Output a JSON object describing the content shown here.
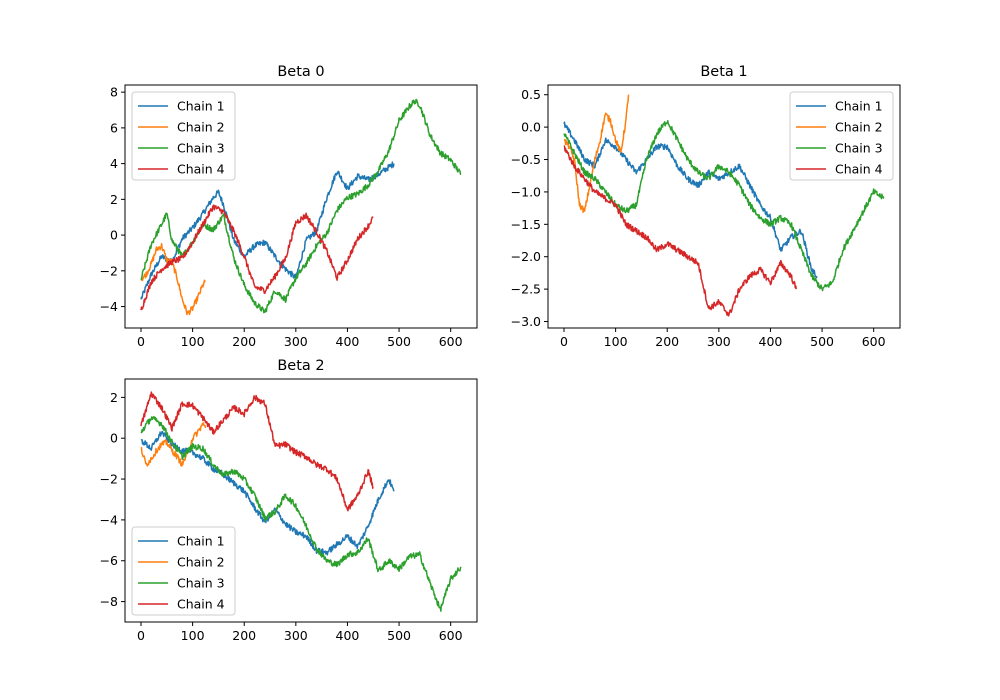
{
  "chart_data": [
    {
      "type": "line",
      "title": "Beta 0",
      "xlim": [
        -31,
        651
      ],
      "ylim": [
        -5.2,
        8.4
      ],
      "xticks": [
        0,
        100,
        200,
        300,
        400,
        500,
        600
      ],
      "yticks": [
        -4,
        -2,
        0,
        2,
        4,
        6,
        8
      ],
      "legend": "upper-left",
      "series": [
        {
          "name": "Chain 1",
          "color": "#1f77b4",
          "n": 490,
          "x": [
            0,
            20,
            40,
            60,
            80,
            100,
            120,
            140,
            150,
            160,
            180,
            200,
            220,
            240,
            260,
            280,
            300,
            320,
            340,
            360,
            380,
            400,
            420,
            440,
            460,
            490
          ],
          "y": [
            -3.6,
            -2.2,
            -1.2,
            -1.5,
            -0.2,
            0.4,
            1.2,
            2.1,
            2.4,
            1.7,
            -0.3,
            -1.2,
            -0.6,
            -0.4,
            -1.2,
            -1.9,
            -2.4,
            -0.3,
            0.2,
            2.1,
            3.6,
            2.6,
            3.3,
            3.1,
            3.4,
            4.0
          ]
        },
        {
          "name": "Chain 2",
          "color": "#ff7f0e",
          "n": 125,
          "x": [
            0,
            10,
            20,
            30,
            40,
            50,
            60,
            70,
            80,
            90,
            100,
            110,
            120,
            125
          ],
          "y": [
            -2.5,
            -2.2,
            -1.6,
            -0.8,
            -0.6,
            -1.4,
            -1.5,
            -2.4,
            -3.6,
            -4.4,
            -4.1,
            -3.5,
            -2.8,
            -2.6
          ]
        },
        {
          "name": "Chain 3",
          "color": "#2ca02c",
          "n": 620,
          "x": [
            0,
            20,
            40,
            50,
            60,
            80,
            100,
            120,
            140,
            160,
            180,
            200,
            220,
            240,
            260,
            280,
            300,
            320,
            340,
            360,
            380,
            400,
            420,
            440,
            460,
            480,
            500,
            520,
            530,
            540,
            560,
            580,
            600,
            620
          ],
          "y": [
            -2.5,
            -0.5,
            0.6,
            1.2,
            -0.3,
            -1.2,
            -0.4,
            0.6,
            0.3,
            1.1,
            -1.3,
            -2.8,
            -3.8,
            -4.3,
            -3.1,
            -3.6,
            -2.4,
            -1.6,
            -0.6,
            0.1,
            1.4,
            2.1,
            2.3,
            2.8,
            3.6,
            4.7,
            6.4,
            7.2,
            7.5,
            7.3,
            5.6,
            4.6,
            4.2,
            3.4
          ]
        },
        {
          "name": "Chain 4",
          "color": "#d62728",
          "n": 450,
          "x": [
            0,
            20,
            40,
            60,
            80,
            100,
            120,
            140,
            160,
            180,
            200,
            220,
            240,
            260,
            280,
            300,
            320,
            340,
            360,
            380,
            400,
            420,
            440,
            450
          ],
          "y": [
            -4.2,
            -2.6,
            -1.9,
            -1.5,
            -1.3,
            -0.4,
            0.6,
            1.6,
            1.3,
            0.2,
            -1.2,
            -2.9,
            -3.1,
            -2.3,
            -1.3,
            0.7,
            1.1,
            0.2,
            -0.9,
            -2.4,
            -1.4,
            -0.2,
            0.5,
            1.0
          ]
        }
      ]
    },
    {
      "type": "line",
      "title": "Beta 1",
      "xlim": [
        -31,
        651
      ],
      "ylim": [
        -3.1,
        0.65
      ],
      "xticks": [
        0,
        100,
        200,
        300,
        400,
        500,
        600
      ],
      "yticks": [
        -3.0,
        -2.5,
        -2.0,
        -1.5,
        -1.0,
        -0.5,
        0.0,
        0.5
      ],
      "legend": "upper-right",
      "series": [
        {
          "name": "Chain 1",
          "color": "#1f77b4",
          "n": 490,
          "x": [
            0,
            20,
            40,
            60,
            80,
            100,
            120,
            140,
            160,
            180,
            200,
            220,
            240,
            260,
            280,
            300,
            320,
            340,
            360,
            380,
            400,
            420,
            440,
            460,
            480,
            490
          ],
          "y": [
            0.05,
            -0.2,
            -0.5,
            -0.6,
            -0.2,
            -0.3,
            -0.5,
            -0.7,
            -0.5,
            -0.3,
            -0.3,
            -0.6,
            -0.8,
            -0.9,
            -0.7,
            -0.8,
            -0.7,
            -0.6,
            -0.9,
            -1.2,
            -1.4,
            -1.9,
            -1.7,
            -1.6,
            -2.2,
            -2.3
          ]
        },
        {
          "name": "Chain 2",
          "color": "#ff7f0e",
          "n": 125,
          "x": [
            0,
            10,
            20,
            30,
            40,
            50,
            60,
            70,
            80,
            90,
            100,
            110,
            120,
            125
          ],
          "y": [
            -0.2,
            -0.3,
            -0.5,
            -1.2,
            -1.3,
            -0.9,
            -0.5,
            -0.2,
            0.2,
            0.1,
            -0.2,
            -0.4,
            0.1,
            0.5
          ]
        },
        {
          "name": "Chain 3",
          "color": "#2ca02c",
          "n": 620,
          "x": [
            0,
            20,
            40,
            60,
            80,
            100,
            120,
            140,
            160,
            180,
            200,
            220,
            240,
            260,
            280,
            300,
            320,
            340,
            360,
            380,
            400,
            420,
            440,
            460,
            480,
            500,
            520,
            540,
            560,
            580,
            600,
            620
          ],
          "y": [
            -0.1,
            -0.4,
            -0.7,
            -0.8,
            -1.0,
            -1.2,
            -1.3,
            -1.2,
            -0.5,
            -0.1,
            0.1,
            -0.2,
            -0.5,
            -0.7,
            -0.8,
            -0.6,
            -0.7,
            -0.9,
            -1.2,
            -1.4,
            -1.5,
            -1.4,
            -1.5,
            -1.9,
            -2.3,
            -2.5,
            -2.4,
            -1.9,
            -1.6,
            -1.3,
            -1.0,
            -1.1
          ]
        },
        {
          "name": "Chain 4",
          "color": "#d62728",
          "n": 450,
          "x": [
            0,
            20,
            40,
            60,
            80,
            100,
            120,
            140,
            160,
            180,
            200,
            220,
            240,
            260,
            280,
            300,
            320,
            340,
            360,
            380,
            400,
            420,
            440,
            450
          ],
          "y": [
            -0.3,
            -0.6,
            -0.8,
            -1.0,
            -1.1,
            -1.2,
            -1.5,
            -1.6,
            -1.7,
            -1.9,
            -1.8,
            -1.9,
            -2.0,
            -2.1,
            -2.8,
            -2.7,
            -2.9,
            -2.5,
            -2.3,
            -2.2,
            -2.4,
            -2.1,
            -2.3,
            -2.5
          ]
        }
      ]
    },
    {
      "type": "line",
      "title": "Beta 2",
      "xlim": [
        -31,
        651
      ],
      "ylim": [
        -9.0,
        2.9
      ],
      "xticks": [
        0,
        100,
        200,
        300,
        400,
        500,
        600
      ],
      "yticks": [
        -8,
        -6,
        -4,
        -2,
        0,
        2
      ],
      "legend": "lower-left",
      "series": [
        {
          "name": "Chain 1",
          "color": "#1f77b4",
          "n": 490,
          "x": [
            0,
            20,
            40,
            60,
            80,
            100,
            120,
            140,
            160,
            180,
            200,
            220,
            240,
            260,
            280,
            300,
            320,
            340,
            360,
            380,
            400,
            420,
            440,
            460,
            480,
            490
          ],
          "y": [
            -0.1,
            -0.5,
            0.3,
            -0.3,
            -0.6,
            -0.7,
            -1.0,
            -1.5,
            -1.8,
            -2.2,
            -2.6,
            -3.4,
            -4.1,
            -3.5,
            -4.2,
            -4.6,
            -4.8,
            -5.5,
            -5.6,
            -5.2,
            -4.8,
            -5.3,
            -4.3,
            -3.0,
            -2.0,
            -2.6
          ]
        },
        {
          "name": "Chain 2",
          "color": "#ff7f0e",
          "n": 125,
          "x": [
            0,
            10,
            20,
            30,
            40,
            50,
            60,
            70,
            80,
            90,
            100,
            110,
            120,
            125
          ],
          "y": [
            -0.5,
            -1.3,
            -1.0,
            -0.6,
            -0.3,
            -0.2,
            -0.6,
            -0.9,
            -1.3,
            -0.7,
            0.0,
            0.3,
            0.7,
            0.5
          ]
        },
        {
          "name": "Chain 3",
          "color": "#2ca02c",
          "n": 620,
          "x": [
            0,
            20,
            40,
            60,
            80,
            100,
            120,
            140,
            160,
            180,
            200,
            220,
            240,
            260,
            280,
            300,
            320,
            340,
            360,
            380,
            400,
            420,
            440,
            460,
            480,
            500,
            520,
            540,
            560,
            580,
            600,
            620
          ],
          "y": [
            0.3,
            1.0,
            0.7,
            -0.2,
            -0.9,
            -0.4,
            -0.5,
            -1.3,
            -1.8,
            -1.6,
            -2.0,
            -2.8,
            -3.9,
            -3.6,
            -2.8,
            -3.3,
            -4.3,
            -5.4,
            -6.0,
            -6.2,
            -5.7,
            -5.6,
            -4.9,
            -6.5,
            -6.0,
            -6.4,
            -5.8,
            -5.7,
            -7.1,
            -8.4,
            -6.9,
            -6.3
          ]
        },
        {
          "name": "Chain 4",
          "color": "#d62728",
          "n": 450,
          "x": [
            0,
            20,
            40,
            60,
            80,
            100,
            120,
            140,
            160,
            180,
            200,
            220,
            240,
            260,
            280,
            300,
            320,
            340,
            360,
            380,
            400,
            420,
            440,
            450
          ],
          "y": [
            0.6,
            2.2,
            1.5,
            0.5,
            1.7,
            1.6,
            1.0,
            0.3,
            0.9,
            1.5,
            1.2,
            2.0,
            1.7,
            -0.4,
            -0.3,
            -0.7,
            -0.9,
            -1.3,
            -1.5,
            -2.0,
            -3.5,
            -2.8,
            -1.6,
            -2.4
          ]
        }
      ]
    }
  ]
}
